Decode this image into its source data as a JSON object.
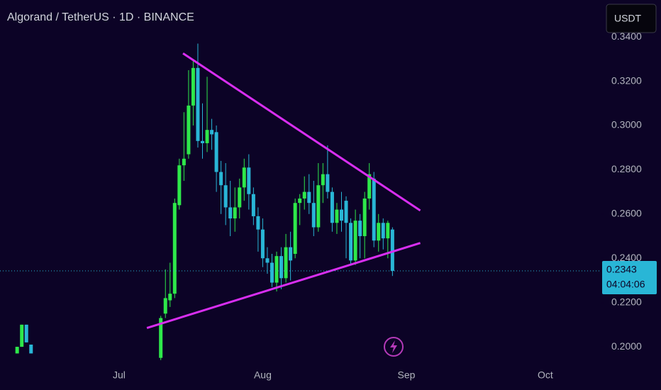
{
  "chart_data": {
    "type": "candlestick",
    "title": "Algorand / TetherUS · 1D · BINANCE",
    "currency": "USDT",
    "up_color": "#2ee84a",
    "down_color": "#29b6d6",
    "x": [
      160,
      161,
      162,
      163,
      191,
      192,
      193,
      194,
      195,
      196,
      197,
      198,
      199,
      200,
      201,
      202,
      203,
      204,
      205,
      206,
      207,
      208,
      209,
      210,
      211,
      212,
      213,
      214,
      215,
      216,
      217,
      218,
      219,
      220,
      221,
      222,
      223,
      224,
      225,
      226,
      227,
      228,
      229,
      230,
      231,
      232,
      233,
      234,
      235,
      236,
      237,
      238,
      239,
      240,
      241
    ],
    "open": [
      0.197,
      0.2,
      0.21,
      0.201,
      0.195,
      0.215,
      0.221,
      0.224,
      0.264,
      0.282,
      0.287,
      0.309,
      0.326,
      0.293,
      0.292,
      0.298,
      0.297,
      0.279,
      0.273,
      0.263,
      0.258,
      0.263,
      0.272,
      0.281,
      0.269,
      0.259,
      0.253,
      0.24,
      0.238,
      0.229,
      0.241,
      0.231,
      0.245,
      0.242,
      0.265,
      0.267,
      0.27,
      0.265,
      0.254,
      0.273,
      0.278,
      0.27,
      0.256,
      0.262,
      0.266,
      0.256,
      0.239,
      0.257,
      0.25,
      0.267,
      0.276,
      0.248,
      0.256,
      0.249,
      0.253
    ],
    "high": [
      0.2,
      0.21,
      0.21,
      0.201,
      0.214,
      0.235,
      0.238,
      0.267,
      0.285,
      0.306,
      0.325,
      0.33,
      0.337,
      0.31,
      0.322,
      0.303,
      0.3,
      0.284,
      0.283,
      0.275,
      0.272,
      0.276,
      0.285,
      0.287,
      0.272,
      0.263,
      0.258,
      0.245,
      0.242,
      0.243,
      0.245,
      0.251,
      0.252,
      0.267,
      0.269,
      0.277,
      0.278,
      0.275,
      0.283,
      0.283,
      0.291,
      0.272,
      0.265,
      0.27,
      0.268,
      0.258,
      0.262,
      0.26,
      0.27,
      0.283,
      0.279,
      0.26,
      0.258,
      0.257,
      0.254
    ],
    "low": [
      0.197,
      0.2,
      0.202,
      0.197,
      0.194,
      0.213,
      0.218,
      0.222,
      0.262,
      0.275,
      0.285,
      0.3,
      0.29,
      0.285,
      0.288,
      0.289,
      0.27,
      0.26,
      0.255,
      0.25,
      0.252,
      0.258,
      0.266,
      0.262,
      0.255,
      0.243,
      0.236,
      0.233,
      0.227,
      0.225,
      0.226,
      0.229,
      0.23,
      0.24,
      0.255,
      0.262,
      0.26,
      0.25,
      0.252,
      0.265,
      0.267,
      0.252,
      0.251,
      0.252,
      0.24,
      0.237,
      0.237,
      0.24,
      0.24,
      0.262,
      0.245,
      0.243,
      0.244,
      0.24,
      0.232
    ],
    "close": [
      0.2,
      0.21,
      0.202,
      0.197,
      0.213,
      0.222,
      0.224,
      0.265,
      0.282,
      0.285,
      0.309,
      0.326,
      0.293,
      0.292,
      0.298,
      0.296,
      0.279,
      0.273,
      0.263,
      0.258,
      0.263,
      0.272,
      0.281,
      0.269,
      0.259,
      0.253,
      0.24,
      0.238,
      0.229,
      0.241,
      0.231,
      0.245,
      0.239,
      0.265,
      0.267,
      0.27,
      0.265,
      0.254,
      0.273,
      0.278,
      0.27,
      0.256,
      0.262,
      0.257,
      0.256,
      0.239,
      0.257,
      0.25,
      0.267,
      0.278,
      0.248,
      0.256,
      0.249,
      0.256,
      0.2343
    ],
    "trendlines": [
      {
        "x": [
          195.8,
          247
        ],
        "y": [
          0.3326,
          0.2616
        ],
        "color": "#d82ef0"
      },
      {
        "x": [
          188,
          247
        ],
        "y": [
          0.2085,
          0.2469
        ],
        "color": "#d82ef0"
      }
    ],
    "last_price": 0.2343,
    "countdown": "04:04:06",
    "xlim": [
      156.3,
      286.1
    ],
    "ylim": [
      0.1933,
      0.3567
    ],
    "xticks": [
      {
        "value": 182,
        "label": "Jul"
      },
      {
        "value": 213,
        "label": "Aug"
      },
      {
        "value": 244,
        "label": "Sep"
      },
      {
        "value": 274,
        "label": "Oct"
      }
    ],
    "yticks": [
      {
        "value": 0.2,
        "label": "0.2000"
      },
      {
        "value": 0.22,
        "label": "0.2200"
      },
      {
        "value": 0.24,
        "label": "0.2400"
      },
      {
        "value": 0.26,
        "label": "0.2600"
      },
      {
        "value": 0.28,
        "label": "0.2800"
      },
      {
        "value": 0.3,
        "label": "0.3000"
      },
      {
        "value": 0.32,
        "label": "0.3200"
      },
      {
        "value": 0.34,
        "label": "0.3400"
      }
    ]
  }
}
